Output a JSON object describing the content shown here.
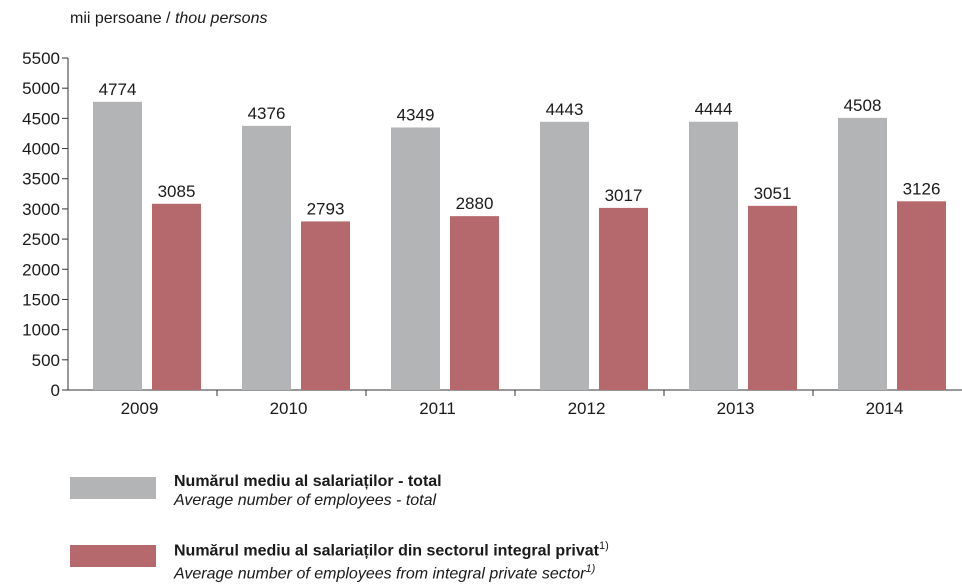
{
  "unit_label": {
    "ro": "mii persoane /",
    "en": "thou persons"
  },
  "colors": {
    "total": "#b3b4b6",
    "private": "#b5696d",
    "axis": "#333333"
  },
  "chart_data": {
    "type": "bar",
    "categories": [
      "2009",
      "2010",
      "2011",
      "2012",
      "2013",
      "2014"
    ],
    "series": [
      {
        "values": [
          4774,
          4376,
          4349,
          4443,
          4444,
          4508
        ]
      },
      {
        "values": [
          3085,
          2793,
          2880,
          3017,
          3051,
          3126
        ]
      }
    ],
    "ylim": [
      0,
      5500
    ],
    "yticks": [
      0,
      500,
      1000,
      1500,
      2000,
      2500,
      3000,
      3500,
      4000,
      4500,
      5000,
      5500
    ],
    "grid": false,
    "legend_placement": "bottom-left"
  },
  "legend": [
    {
      "ro": "Numărul mediu al salariaților - total",
      "en": "Average number of employees - total",
      "footnote": ""
    },
    {
      "ro": "Numărul mediu al salariaților din sectorul integral privat",
      "en": "Average number of employees from integral private sector",
      "footnote": "1)"
    }
  ]
}
